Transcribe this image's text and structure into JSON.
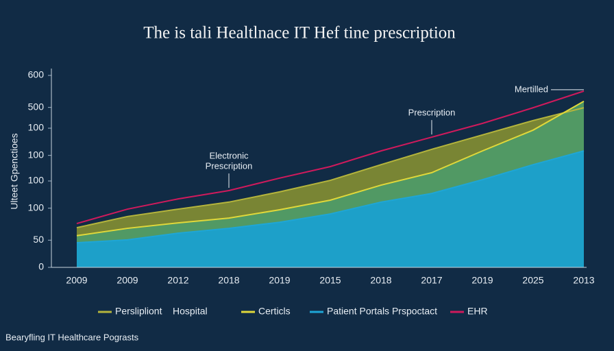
{
  "chart_data": {
    "type": "area",
    "title": "The is tali Healtlnace IT Hef tine prescription",
    "y_label": "Ulteet Gpenctioes",
    "footer": "Bearyfling IT Healthcare Pograsts",
    "categories": [
      "2009",
      "2009",
      "2012",
      "2018",
      "2019",
      "2015",
      "2018",
      "2017",
      "2019",
      "2025",
      "2013"
    ],
    "ylim": [
      0,
      600
    ],
    "yticks": [
      0,
      {
        "value": 85,
        "label": "50"
      },
      {
        "value": 185,
        "label": "100"
      },
      {
        "value": 270,
        "label": "100"
      },
      {
        "value": 350,
        "label": "100"
      },
      {
        "value": 435,
        "label": "100"
      },
      500,
      600
    ],
    "series": [
      {
        "name": "Perslipliont    Hospital",
        "color": "#b5b53c",
        "fill": "#7f8a34",
        "values": [
          124,
          159,
          182,
          204,
          236,
          272,
          321,
          369,
          414,
          459,
          499
        ]
      },
      {
        "name": "Certicls",
        "color": "#e0d83a",
        "fill": "#4f9a67",
        "values": [
          99,
          122,
          139,
          154,
          180,
          210,
          257,
          296,
          364,
          429,
          519
        ]
      },
      {
        "name": "Patient Portals Prspoctact",
        "color": "#1ea6d6",
        "fill": "#1aa0cf",
        "values": [
          77,
          86,
          107,
          122,
          141,
          167,
          204,
          231,
          274,
          321,
          364
        ]
      },
      {
        "name": "EHR",
        "color": "#d01a5c",
        "values": [
          137,
          182,
          214,
          240,
          279,
          315,
          364,
          407,
          450,
          499,
          551
        ]
      }
    ],
    "annotations": [
      {
        "lines": [
          "Electronic",
          "Prescription"
        ],
        "category": 3,
        "series": 3
      },
      {
        "lines": [
          "Prescription"
        ],
        "category": 7,
        "series": 3
      },
      {
        "lines": [
          "Mertilled"
        ],
        "category": 10,
        "series": 3
      }
    ]
  }
}
